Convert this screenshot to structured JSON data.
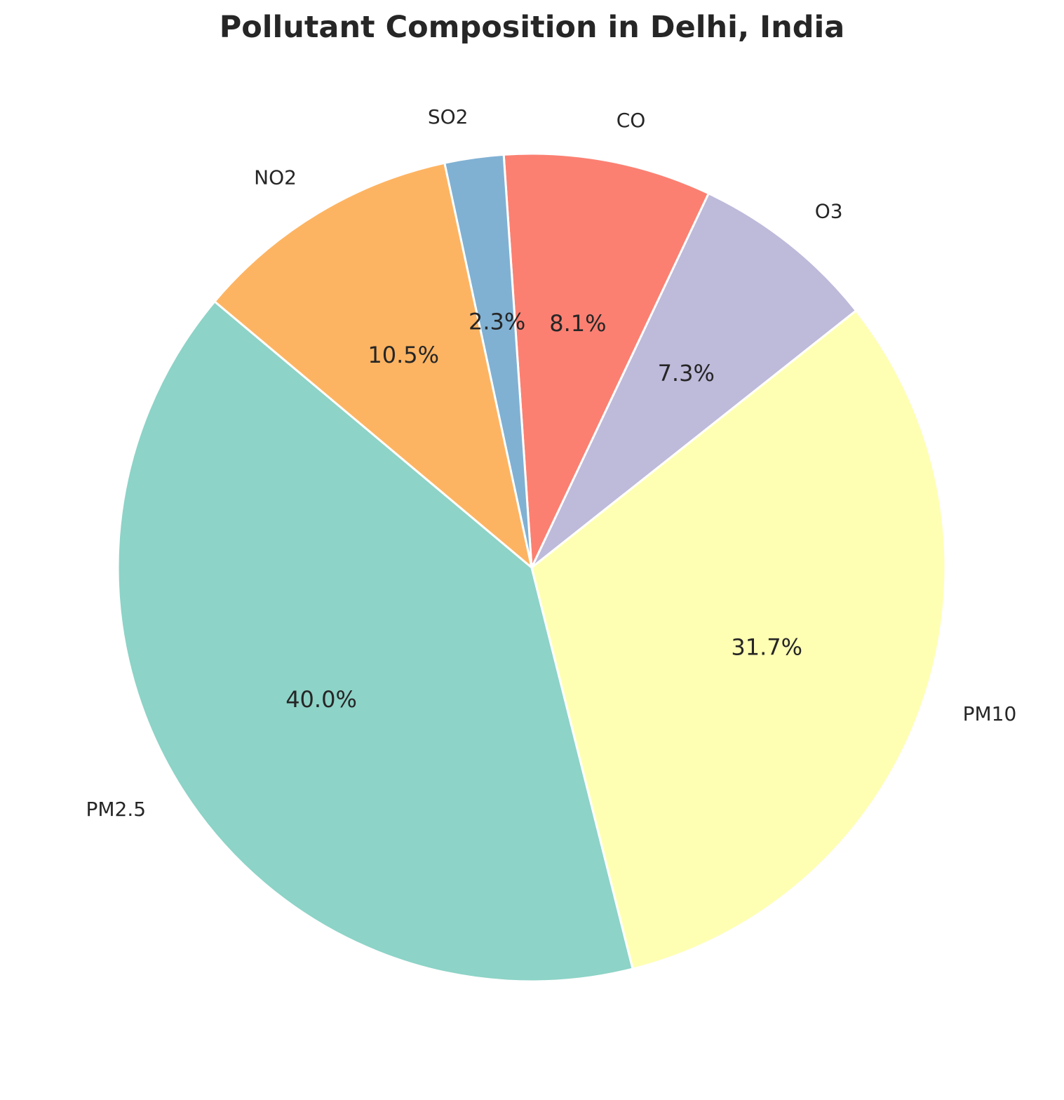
{
  "chart_data": {
    "type": "pie",
    "title": "Pollutant Composition in Delhi, India",
    "categories": [
      "PM2.5",
      "PM10",
      "O3",
      "CO",
      "SO2",
      "NO2"
    ],
    "values": [
      40.0,
      31.7,
      7.3,
      8.1,
      2.3,
      10.5
    ],
    "percent_labels": [
      "40.0%",
      "31.7%",
      "7.3%",
      "8.1%",
      "2.3%",
      "10.5%"
    ],
    "colors": [
      "#8dd3c7",
      "#ffffb3",
      "#bebada",
      "#fb8072",
      "#80b1d3",
      "#fdb462"
    ],
    "start_angle_deg": 140,
    "direction": "counterclockwise",
    "edge_color": "#ffffff"
  }
}
